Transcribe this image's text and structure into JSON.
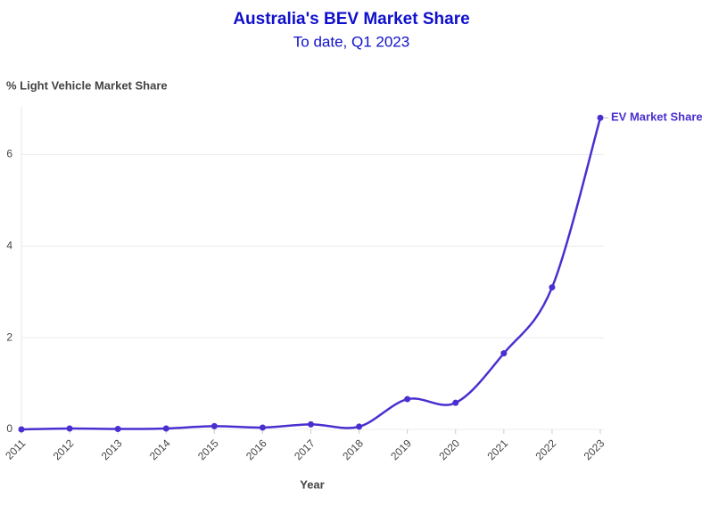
{
  "chart_data": {
    "type": "line",
    "title": "Australia's BEV Market Share",
    "subtitle": "To date, Q1 2023",
    "y_label": "% Light Vehicle Market Share",
    "x_label": "Year",
    "x": [
      2011,
      2012,
      2013,
      2014,
      2015,
      2016,
      2017,
      2018,
      2019,
      2020,
      2021,
      2022,
      2023
    ],
    "series": [
      {
        "name": "EV Market Share",
        "color": "#4a2fd0",
        "values": [
          0.0,
          0.02,
          0.01,
          0.02,
          0.07,
          0.04,
          0.11,
          0.06,
          0.66,
          0.58,
          1.66,
          3.1,
          6.8
        ]
      }
    ],
    "xlim": [
      2011,
      2023
    ],
    "xticks": [
      2011,
      2012,
      2013,
      2014,
      2015,
      2016,
      2017,
      2018,
      2019,
      2020,
      2021,
      2022,
      2023
    ],
    "ylim": [
      0,
      7
    ],
    "yticks": [
      0,
      2,
      4,
      6
    ],
    "grid": true
  }
}
